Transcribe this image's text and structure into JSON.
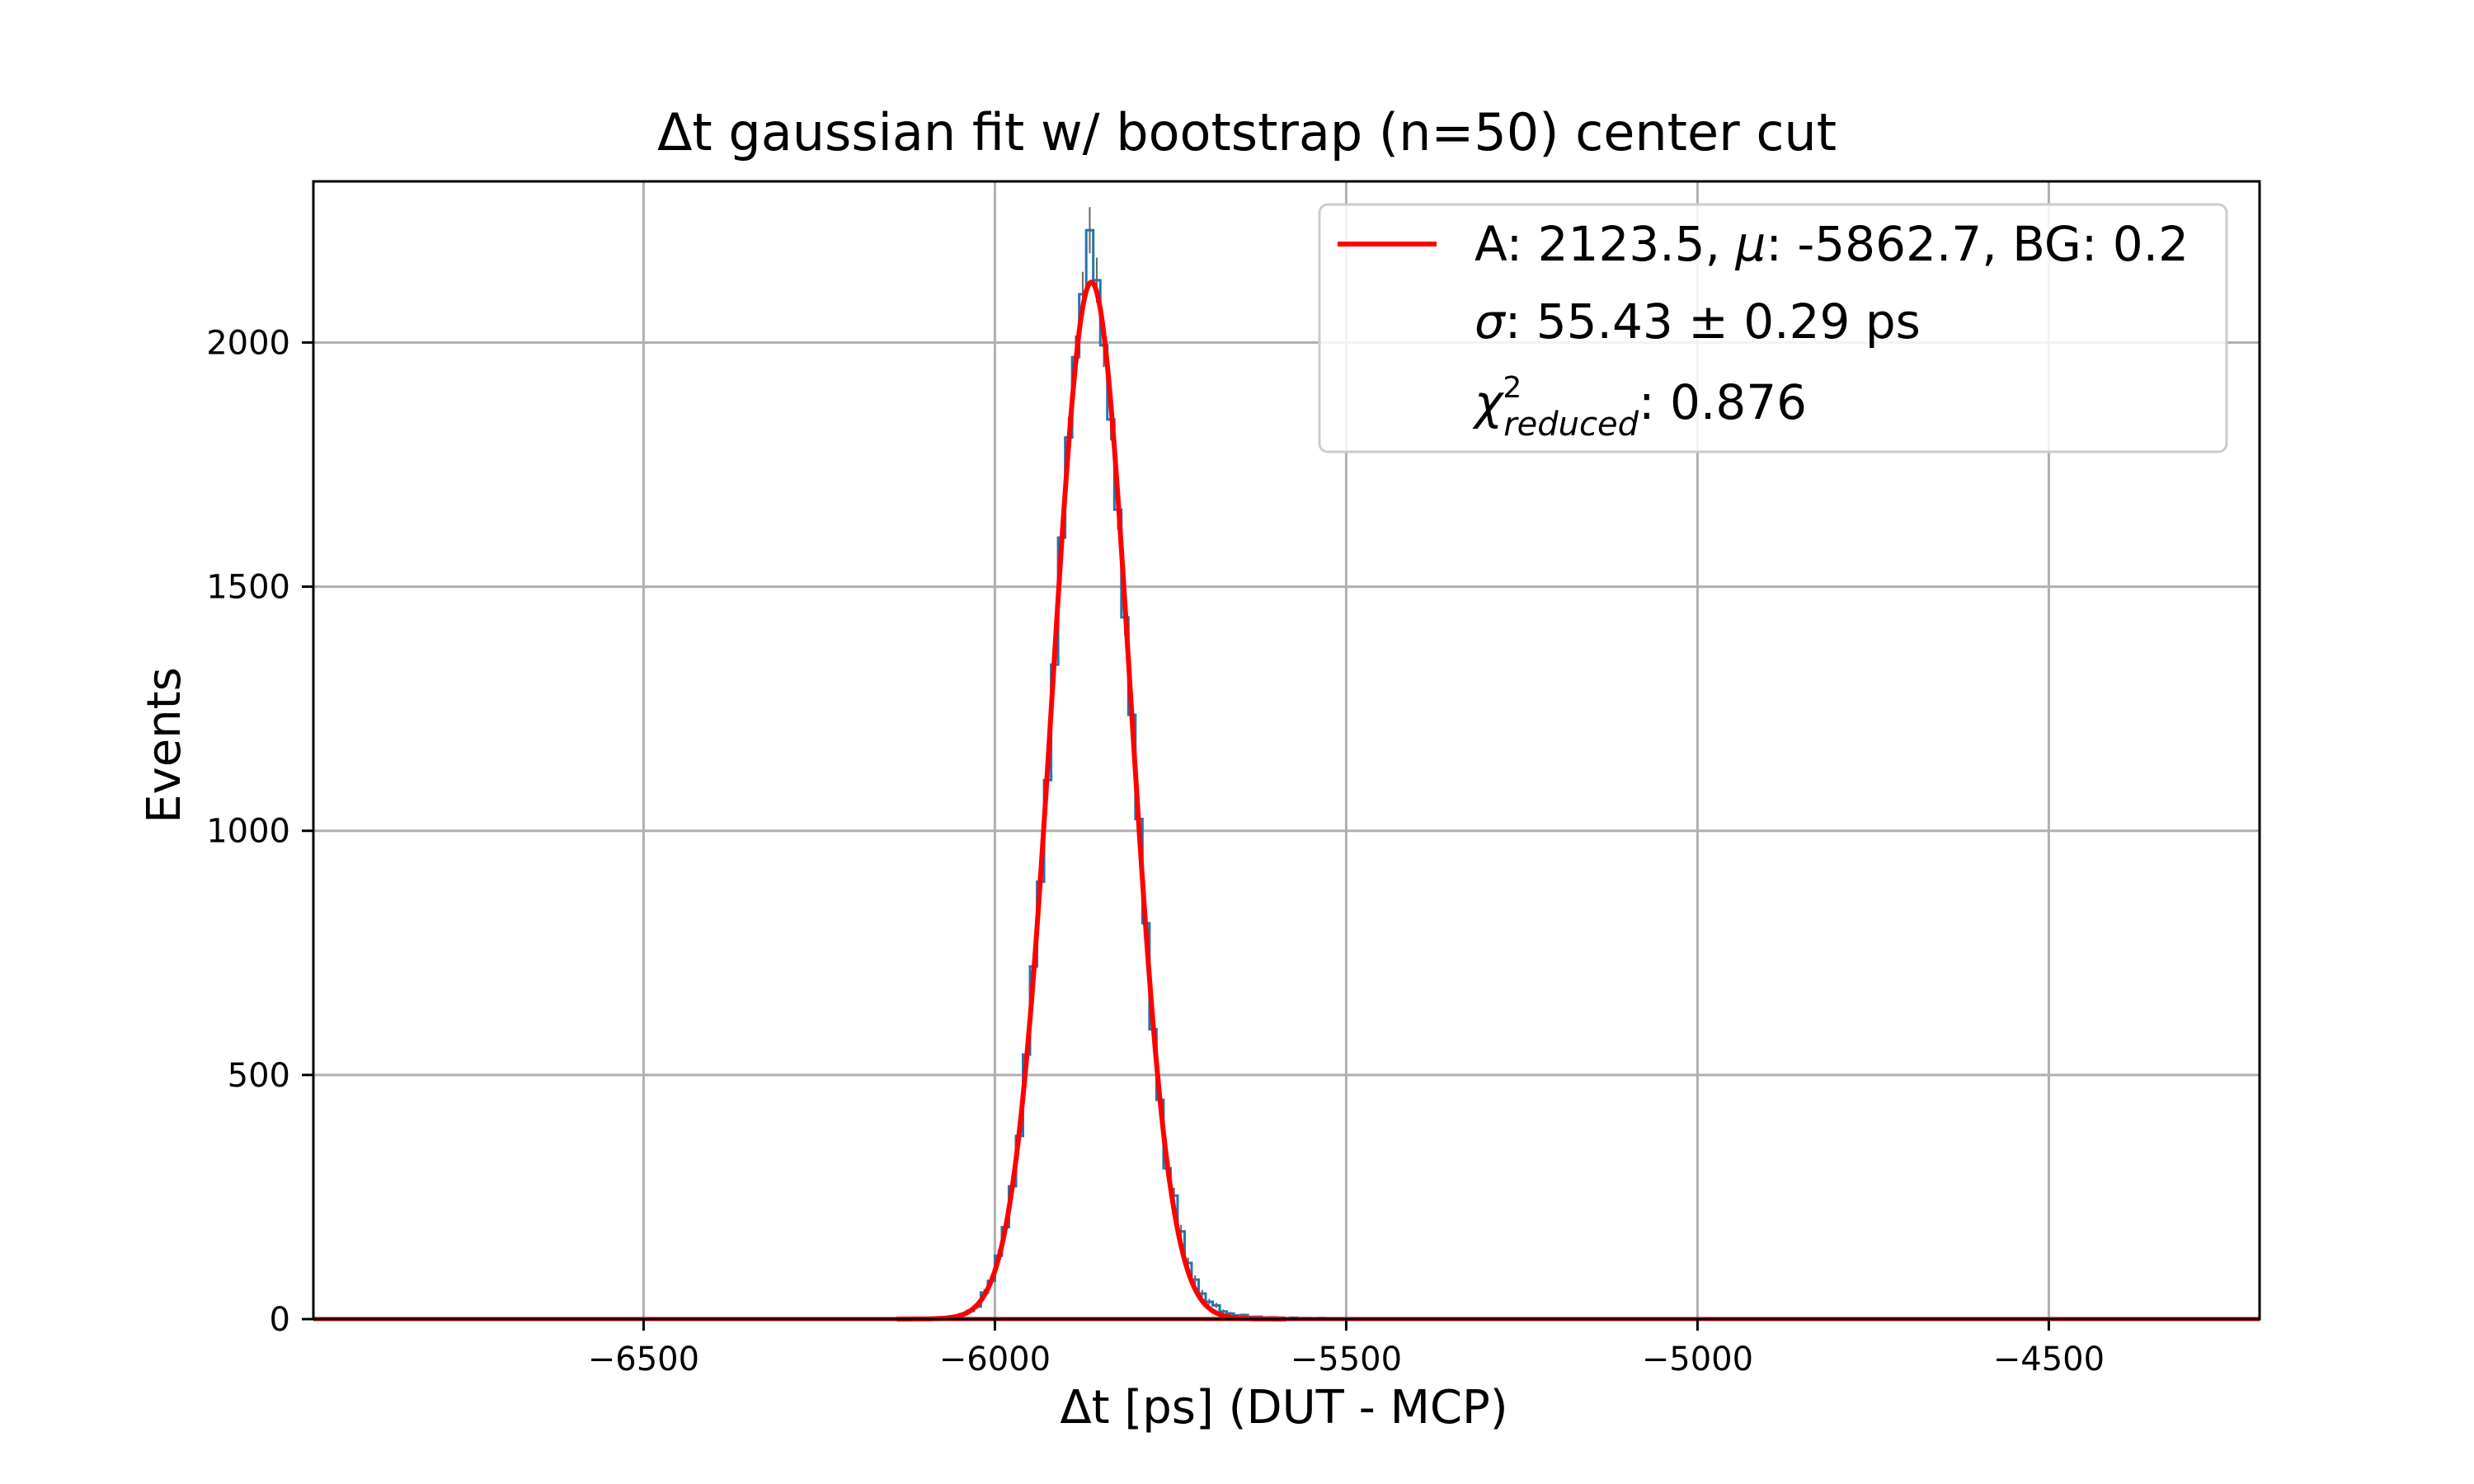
{
  "chart_data": {
    "type": "histogram",
    "title": "Δt gaussian fit w/ bootstrap (n=50) center cut",
    "xlabel": "Δt [ps] (DUT - MCP)",
    "ylabel": "Events",
    "xlim": [
      -6970,
      -4200
    ],
    "ylim": [
      0,
      2330
    ],
    "xticks": [
      -6500,
      -6000,
      -5500,
      -5000,
      -4500
    ],
    "xtick_labels": [
      "−6500",
      "−6000",
      "−5500",
      "−5000",
      "−4500"
    ],
    "yticks": [
      0,
      500,
      1000,
      1500,
      2000
    ],
    "ytick_labels": [
      "0",
      "500",
      "1000",
      "1500",
      "2000"
    ],
    "grid": true,
    "legend_position": "top-right",
    "fit": {
      "model": "gaussian",
      "A": 2123.5,
      "mu": -5862.7,
      "sigma": 55.43,
      "sigma_err": 0.29,
      "BG": 0.2,
      "chi2_reduced": 0.876
    },
    "histogram": {
      "bin_width": 10,
      "color": "#1f77b4",
      "peak_bin_center": -5865,
      "peak_value": 2230
    },
    "fit_color": "#ff0000",
    "legend": {
      "line1_text": "A: 2123.5, ",
      "line1_mu": "μ",
      "line1_rest": ": -5862.7, BG:  0.2",
      "line2_sigma": "σ",
      "line2_rest": ": 55.43 ± 0.29 ps",
      "line3_chi": "χ",
      "line3_sup": "2",
      "line3_sub": "reduced",
      "line3_rest": ":  0.876"
    }
  }
}
